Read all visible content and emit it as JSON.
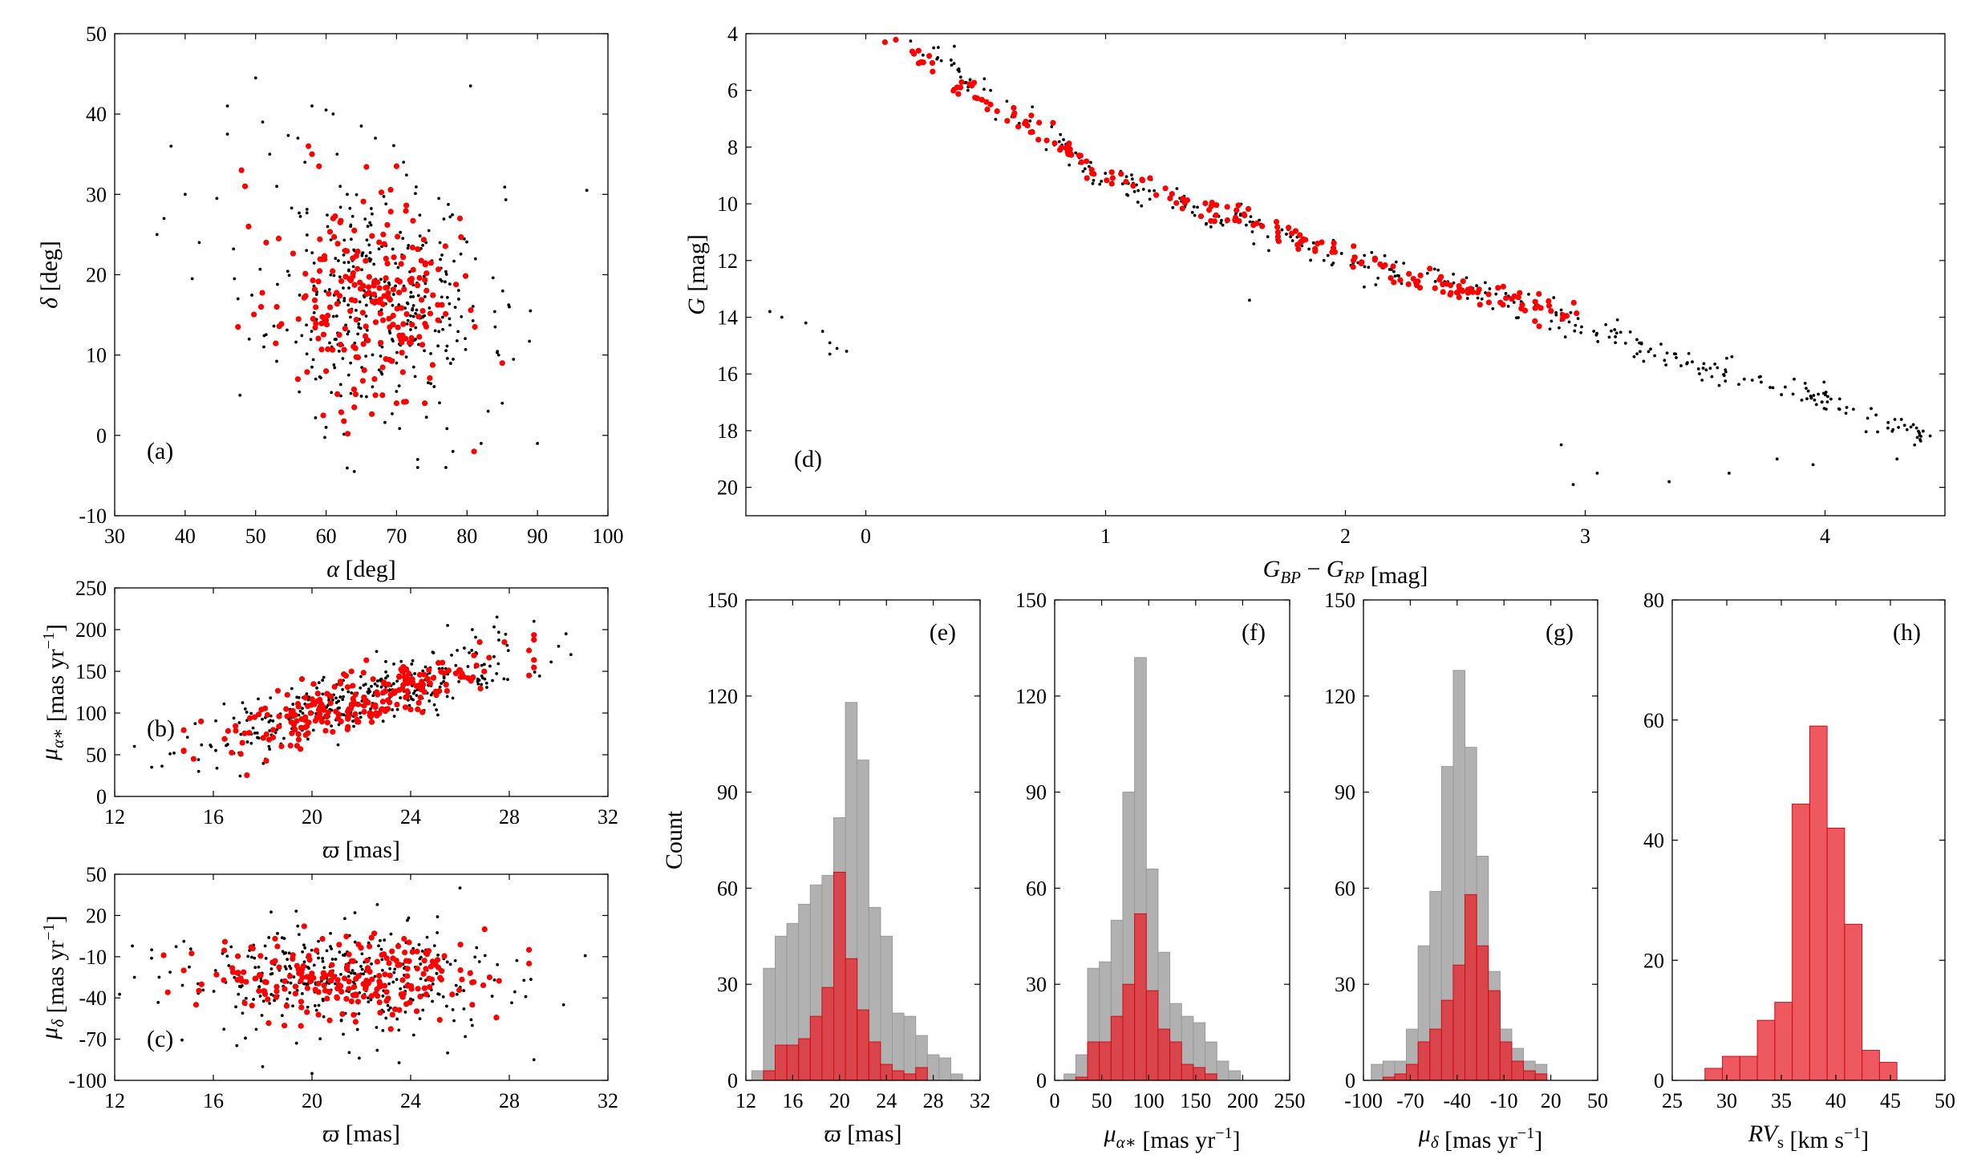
{
  "colors": {
    "black": "#000000",
    "red": "#ff0000",
    "gray": "#a9a9a9",
    "red_fill": "#e8202a"
  },
  "chart_data": [
    {
      "id": "a",
      "type": "scatter",
      "label": "(a)",
      "xlabel_sym": "α",
      "xlabel_unit": " [deg]",
      "ylabel_sym": "δ",
      "ylabel_unit": " [deg]",
      "xlim": [
        30,
        100
      ],
      "ylim": [
        -10,
        50
      ],
      "xticks": [
        30,
        40,
        50,
        60,
        70,
        80,
        90,
        100
      ],
      "yticks": [
        -10,
        0,
        10,
        20,
        30,
        40,
        50
      ],
      "series": [
        {
          "name": "all",
          "color": "black",
          "cluster": {
            "cx": 68,
            "cy": 17,
            "sx": 7.5,
            "sy": 7,
            "n": 330,
            "seed": 11
          },
          "points": [
            [
              36,
              25
            ],
            [
              37,
              27
            ],
            [
              38,
              36
            ],
            [
              40,
              30
            ],
            [
              41,
              19.5
            ],
            [
              42,
              24
            ],
            [
              44.5,
              29.5
            ],
            [
              46,
              41
            ],
            [
              46,
              37.5
            ],
            [
              47,
              19.5
            ],
            [
              47.5,
              17
            ],
            [
              50,
              44.5
            ],
            [
              51,
              39
            ],
            [
              52,
              35
            ],
            [
              53,
              31
            ],
            [
              56,
              37
            ],
            [
              57,
              34
            ],
            [
              58,
              41
            ],
            [
              60,
              40.5
            ],
            [
              61,
              40
            ],
            [
              62,
              31
            ],
            [
              63,
              30
            ],
            [
              65,
              38.5
            ],
            [
              67,
              37
            ],
            [
              71,
              34
            ],
            [
              76,
              29.5
            ],
            [
              80.5,
              43.5
            ],
            [
              97,
              30.5
            ],
            [
              86,
              16
            ],
            [
              89,
              15.5
            ],
            [
              84,
              13.5
            ],
            [
              90,
              -1
            ],
            [
              85,
              4
            ],
            [
              83,
              3
            ],
            [
              82,
              -1
            ],
            [
              78,
              -2
            ],
            [
              77,
              -4
            ],
            [
              73,
              -3
            ],
            [
              73,
              -4
            ],
            [
              64,
              -4.5
            ],
            [
              60,
              1
            ],
            [
              58,
              8.5
            ],
            [
              62,
              3
            ]
          ]
        },
        {
          "name": "members",
          "color": "red",
          "cluster": {
            "cx": 66,
            "cy": 16.5,
            "sx": 6,
            "sy": 5.5,
            "n": 210,
            "seed": 23
          },
          "points": [
            [
              48,
              33
            ],
            [
              48.5,
              31
            ],
            [
              49,
              26
            ],
            [
              47.5,
              13.5
            ],
            [
              51.5,
              24
            ],
            [
              53,
              16
            ],
            [
              57.5,
              36
            ],
            [
              58,
              35
            ],
            [
              59,
              33.5
            ],
            [
              61,
              27
            ],
            [
              62,
              26.5
            ],
            [
              64,
              25.5
            ],
            [
              64,
              3.5
            ],
            [
              67,
              5
            ],
            [
              68,
              5
            ],
            [
              70,
              4
            ],
            [
              70,
              33.5
            ],
            [
              74,
              4
            ],
            [
              79,
              27
            ],
            [
              81,
              -2
            ],
            [
              85,
              9
            ],
            [
              56,
              7
            ],
            [
              60,
              8
            ]
          ]
        }
      ]
    },
    {
      "id": "b",
      "type": "scatter",
      "label": "(b)",
      "xlabel_sym": "ϖ",
      "xlabel_unit": " [mas]",
      "ylabel_sym": "μ",
      "ylabel_sub": "α∗",
      "ylabel_unit": " [mas yr",
      "xlim": [
        12,
        32
      ],
      "ylim": [
        0,
        250
      ],
      "xticks": [
        12,
        16,
        20,
        24,
        28,
        32
      ],
      "yticks": [
        0,
        50,
        100,
        150,
        200,
        250
      ],
      "series": [
        {
          "name": "all",
          "color": "black",
          "trend": {
            "x0": 13,
            "x1": 30.5,
            "slope": 8.0,
            "intercept": -60,
            "noise": 18,
            "n": 330,
            "seed": 31
          },
          "points": [
            [
              12.8,
              60
            ],
            [
              13.5,
              35
            ],
            [
              30,
              180
            ],
            [
              30.3,
              195
            ],
            [
              29,
              210
            ],
            [
              27.5,
              215
            ],
            [
              26.5,
              200
            ],
            [
              25.5,
              205
            ]
          ]
        },
        {
          "name": "members",
          "color": "red",
          "trend": {
            "x0": 14.8,
            "x1": 29,
            "slope": 8.0,
            "intercept": -63,
            "noise": 16,
            "n": 230,
            "seed": 47
          },
          "points": [
            [
              14.8,
              55
            ],
            [
              15.2,
              45
            ],
            [
              15.5,
              90
            ],
            [
              28.8,
              175
            ],
            [
              28.8,
              145
            ],
            [
              27.8,
              185
            ],
            [
              26.8,
              185
            ]
          ]
        }
      ]
    },
    {
      "id": "c",
      "type": "scatter",
      "label": "(c)",
      "xlabel_sym": "ϖ",
      "xlabel_unit": " [mas]",
      "ylabel_sym": "μ",
      "ylabel_sub": "δ",
      "ylabel_unit": " [mas yr",
      "xlim": [
        12,
        32
      ],
      "ylim": [
        -100,
        50
      ],
      "xticks": [
        12,
        16,
        20,
        24,
        28,
        32
      ],
      "yticks": [
        -100,
        -70,
        -40,
        -10,
        20,
        50
      ],
      "series": [
        {
          "name": "all",
          "color": "black",
          "cluster": {
            "cx": 21.5,
            "cy": -27,
            "sx": 3.5,
            "sy": 20,
            "n": 330,
            "seed": 53
          },
          "points": [
            [
              12.8,
              -25
            ],
            [
              13.5,
              -5
            ],
            [
              30.2,
              -45
            ],
            [
              29,
              -85
            ],
            [
              26.5,
              -60
            ],
            [
              25.5,
              -80
            ],
            [
              26,
              40
            ],
            [
              20,
              -95
            ],
            [
              18,
              -90
            ]
          ]
        },
        {
          "name": "members",
          "color": "red",
          "cluster": {
            "cx": 21.3,
            "cy": -25,
            "sx": 2.8,
            "sy": 15,
            "n": 230,
            "seed": 61
          },
          "points": [
            [
              28.8,
              -5
            ],
            [
              28.8,
              -15
            ],
            [
              27,
              10
            ],
            [
              27.2,
              -25
            ],
            [
              26.5,
              -45
            ],
            [
              14.8,
              -20
            ],
            [
              15.3,
              -45
            ]
          ]
        }
      ]
    },
    {
      "id": "d",
      "type": "scatter",
      "label": "(d)",
      "xlabel_tex": "G_BP − G_RP",
      "xlabel_unit": " [mag]",
      "ylabel_sym": "G",
      "ylabel_unit": " [mag]",
      "xlim": [
        -0.5,
        4.5
      ],
      "ylim": [
        4,
        21
      ],
      "yreverse": true,
      "xticks": [
        0,
        1,
        2,
        3,
        4
      ],
      "yticks": [
        4,
        6,
        8,
        10,
        12,
        14,
        16,
        18,
        20
      ],
      "series": [
        {
          "name": "all",
          "color": "black",
          "sequence": {
            "xs": [
              0.2,
              0.6,
              1.0,
              1.5,
              2.0,
              2.5,
              2.9,
              3.2,
              3.6,
              4.0,
              4.4
            ],
            "ys": [
              4.3,
              6.8,
              9.0,
              10.5,
              12.0,
              13.0,
              14.0,
              15.0,
              16.0,
              17.0,
              18.0
            ],
            "x0": 0.2,
            "x1": 4.45,
            "noise": 0.28,
            "n": 330,
            "seed": 71
          },
          "points": [
            [
              -0.4,
              13.8
            ],
            [
              -0.35,
              14.0
            ],
            [
              -0.25,
              14.2
            ],
            [
              -0.18,
              14.5
            ],
            [
              -0.15,
              14.9
            ],
            [
              -0.12,
              15.1
            ],
            [
              -0.08,
              15.2
            ],
            [
              -0.15,
              15.3
            ],
            [
              1.6,
              13.4
            ],
            [
              2.9,
              18.5
            ],
            [
              2.95,
              19.9
            ],
            [
              3.05,
              19.5
            ],
            [
              3.35,
              19.8
            ],
            [
              3.6,
              19.5
            ],
            [
              3.8,
              19.0
            ],
            [
              3.95,
              19.2
            ],
            [
              4.3,
              19.0
            ],
            [
              4.4,
              18.2
            ]
          ]
        },
        {
          "name": "members",
          "color": "red",
          "sequence": {
            "xs": [
              0.1,
              0.3,
              0.6,
              0.9,
              1.2,
              1.5,
              1.8,
              2.1,
              2.4,
              2.7,
              2.95
            ],
            "ys": [
              4.3,
              5.3,
              6.8,
              8.5,
              9.5,
              10.3,
              11.3,
              12.1,
              12.8,
              13.4,
              13.9
            ],
            "x0": 0.1,
            "x1": 2.95,
            "noise": 0.22,
            "n": 200,
            "seed": 83
          },
          "points": [
            [
              0.08,
              4.3
            ],
            [
              0.22,
              4.6
            ],
            [
              0.23,
              5.0
            ]
          ]
        }
      ]
    },
    {
      "id": "e",
      "type": "bar",
      "label": "(e)",
      "xlabel_sym": "ϖ",
      "xlabel_unit": " [mas]",
      "ylabel": "Count",
      "xlim": [
        12,
        32
      ],
      "ylim": [
        0,
        150
      ],
      "xticks": [
        12,
        16,
        20,
        24,
        28,
        32
      ],
      "yticks": [
        0,
        30,
        60,
        90,
        120,
        150
      ],
      "bin_start": 12.5,
      "bin_width": 1.0,
      "series": [
        {
          "name": "all",
          "color": "gray",
          "values": [
            3,
            35,
            45,
            49,
            55,
            61,
            64,
            82,
            118,
            100,
            54,
            45,
            21,
            20,
            14,
            8,
            7,
            2
          ]
        },
        {
          "name": "members",
          "color": "red_fill",
          "values": [
            0,
            3,
            11,
            11,
            13,
            20,
            29,
            65,
            38,
            22,
            12,
            5,
            3,
            2,
            4,
            0,
            0,
            0
          ]
        }
      ]
    },
    {
      "id": "f",
      "type": "bar",
      "label": "(f)",
      "xlabel_sym": "μ",
      "xlabel_sub": "α∗",
      "xlabel_unit": " [mas yr",
      "xlim": [
        0,
        250
      ],
      "ylim": [
        0,
        150
      ],
      "xticks": [
        0,
        50,
        100,
        150,
        200,
        250
      ],
      "yticks": [
        0,
        30,
        60,
        90,
        120,
        150
      ],
      "bin_start": 10,
      "bin_width": 12.5,
      "series": [
        {
          "name": "all",
          "color": "gray",
          "values": [
            2,
            8,
            35,
            37,
            50,
            90,
            132,
            66,
            40,
            24,
            20,
            18,
            12,
            6,
            3,
            0
          ]
        },
        {
          "name": "members",
          "color": "red_fill",
          "values": [
            0,
            1,
            12,
            12,
            20,
            30,
            52,
            28,
            16,
            12,
            5,
            4,
            2,
            0,
            0,
            0
          ]
        }
      ]
    },
    {
      "id": "g",
      "type": "bar",
      "label": "(g)",
      "xlabel_sym": "μ",
      "xlabel_sub": "δ",
      "xlabel_unit": " [mas yr",
      "xlim": [
        -100,
        50
      ],
      "ylim": [
        0,
        150
      ],
      "xticks": [
        -100,
        -70,
        -40,
        -10,
        20,
        50
      ],
      "yticks": [
        0,
        30,
        60,
        90,
        120,
        150
      ],
      "bin_start": -95,
      "bin_width": 7.5,
      "series": [
        {
          "name": "all",
          "color": "gray",
          "values": [
            5,
            6,
            6,
            16,
            42,
            59,
            98,
            128,
            104,
            70,
            34,
            16,
            10,
            6,
            5,
            0
          ]
        },
        {
          "name": "members",
          "color": "red_fill",
          "values": [
            0,
            1,
            2,
            5,
            12,
            16,
            25,
            36,
            58,
            42,
            28,
            12,
            6,
            3,
            2,
            0
          ]
        }
      ]
    },
    {
      "id": "h",
      "type": "bar",
      "label": "(h)",
      "xlabel_sym": "RV",
      "xlabel_sub": "s",
      "xlabel_unit": " [km s",
      "xlim": [
        25,
        50
      ],
      "ylim": [
        0,
        80
      ],
      "xticks": [
        25,
        30,
        35,
        40,
        45,
        50
      ],
      "yticks": [
        0,
        20,
        40,
        60,
        80
      ],
      "bin_start": 28,
      "bin_width": 1.6,
      "series": [
        {
          "name": "members",
          "color": "red_fill",
          "values": [
            2,
            4,
            4,
            10,
            13,
            46,
            59,
            42,
            26,
            5,
            3
          ]
        }
      ]
    }
  ]
}
